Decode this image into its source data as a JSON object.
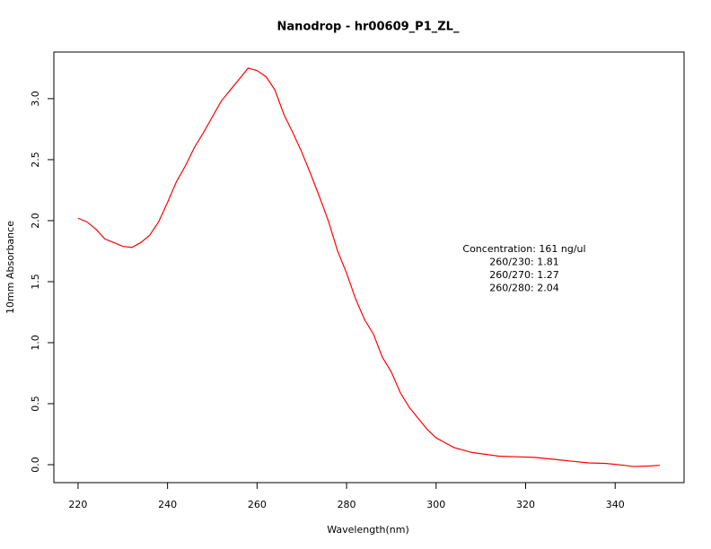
{
  "chart_data": {
    "type": "line",
    "title": "Nanodrop - hr00609_P1_ZL_",
    "xlabel": "Wavelength(nm)",
    "ylabel": "10mm Absorbance",
    "x": [
      220,
      222,
      224,
      226,
      228,
      230,
      232,
      234,
      236,
      238,
      240,
      242,
      244,
      246,
      248,
      250,
      252,
      254,
      256,
      258,
      260,
      262,
      264,
      266,
      268,
      270,
      272,
      274,
      276,
      278,
      280,
      282,
      284,
      286,
      288,
      290,
      292,
      294,
      296,
      298,
      300,
      302,
      304,
      306,
      308,
      310,
      314,
      318,
      322,
      326,
      330,
      334,
      338,
      342,
      344,
      348,
      350
    ],
    "series": [
      {
        "name": "Absorbance",
        "color": "#ff0000",
        "values": [
          2.02,
          1.99,
          1.93,
          1.85,
          1.82,
          1.79,
          1.78,
          1.82,
          1.88,
          1.99,
          2.15,
          2.32,
          2.45,
          2.6,
          2.72,
          2.85,
          2.98,
          3.07,
          3.16,
          3.25,
          3.23,
          3.18,
          3.07,
          2.87,
          2.72,
          2.56,
          2.38,
          2.19,
          1.99,
          1.75,
          1.57,
          1.36,
          1.19,
          1.07,
          0.88,
          0.76,
          0.59,
          0.47,
          0.38,
          0.29,
          0.22,
          0.18,
          0.14,
          0.12,
          0.1,
          0.09,
          0.07,
          0.065,
          0.06,
          0.045,
          0.03,
          0.015,
          0.01,
          -0.005,
          -0.015,
          -0.01,
          -0.005
        ]
      }
    ],
    "xlim": [
      214.6,
      355.4
    ],
    "ylim": [
      -0.147,
      3.382
    ],
    "xticks": [
      220,
      240,
      260,
      280,
      300,
      320,
      340
    ],
    "yticks": [
      {
        "value": 0,
        "label": "0.0"
      },
      0.5,
      {
        "value": 1,
        "label": "1.0"
      },
      1.5,
      {
        "value": 2,
        "label": "2.0"
      },
      2.5,
      {
        "value": 3,
        "label": "3.0"
      }
    ],
    "annotations": [
      "Concentration: 161 ng/ul",
      "260/230: 1.81",
      "260/270: 1.27",
      "260/280: 2.04"
    ]
  }
}
